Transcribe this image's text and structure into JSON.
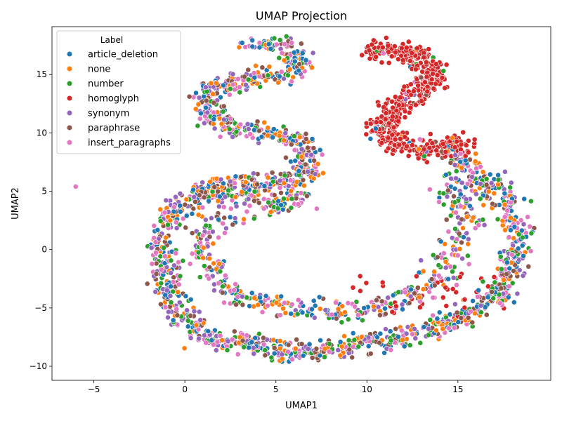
{
  "chart_data": {
    "type": "scatter",
    "title": "UMAP Projection",
    "xlabel": "UMAP1",
    "ylabel": "UMAP2",
    "xlim": [
      -7.3,
      20.1
    ],
    "ylim": [
      -11.2,
      19.1
    ],
    "xticks": [
      -5,
      0,
      5,
      10,
      15
    ],
    "yticks": [
      -10,
      -5,
      0,
      5,
      10,
      15
    ],
    "grid": false,
    "legend": {
      "title": "Label",
      "position": "top-left"
    },
    "series": [
      {
        "name": "article_deletion",
        "color": "#1f77b4"
      },
      {
        "name": "none",
        "color": "#ff7f0e"
      },
      {
        "name": "number",
        "color": "#2ca02c"
      },
      {
        "name": "homoglyph",
        "color": "#d62728"
      },
      {
        "name": "synonym",
        "color": "#9467bd"
      },
      {
        "name": "paraphrase",
        "color": "#8c564b"
      },
      {
        "name": "insert_paragraphs",
        "color": "#e377c2"
      }
    ],
    "outlier_points": [
      {
        "series": "insert_paragraphs",
        "x": -6.0,
        "y": 5.4
      }
    ]
  }
}
